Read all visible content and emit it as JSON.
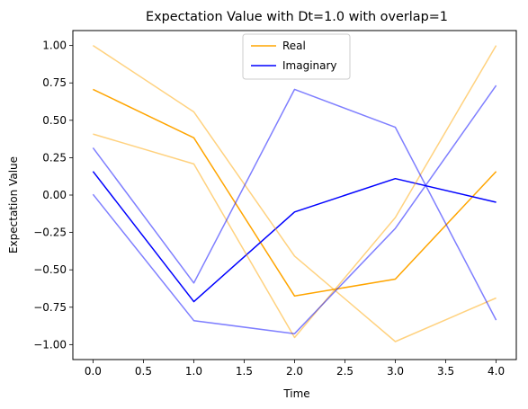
{
  "chart_data": {
    "type": "line",
    "title": "Expectation Value with Dt=1.0 with overlap=1",
    "xlabel": "Time",
    "ylabel": "Expectation Value",
    "xlim": [
      -0.2,
      4.2
    ],
    "ylim": [
      -1.1,
      1.1
    ],
    "xticks": [
      0.0,
      0.5,
      1.0,
      1.5,
      2.0,
      2.5,
      3.0,
      3.5,
      4.0
    ],
    "xtick_labels": [
      "0.0",
      "0.5",
      "1.0",
      "1.5",
      "2.0",
      "2.5",
      "3.0",
      "3.5",
      "4.0"
    ],
    "yticks": [
      -1.0,
      -0.75,
      -0.5,
      -0.25,
      0.0,
      0.25,
      0.5,
      0.75,
      1.0
    ],
    "ytick_labels": [
      "−1.00",
      "−0.75",
      "−0.50",
      "−0.25",
      "0.00",
      "0.25",
      "0.50",
      "0.75",
      "1.00"
    ],
    "grid": false,
    "legend_position": "top-center",
    "x": [
      0,
      1,
      2,
      3,
      4
    ],
    "series": [
      {
        "name": "Real",
        "color": "#FFA500",
        "opacity": 1.0,
        "legend": true,
        "values": [
          0.707,
          0.383,
          -0.675,
          -0.562,
          0.158
        ]
      },
      {
        "name": "Imaginary",
        "color": "#0000FF",
        "opacity": 1.0,
        "legend": true,
        "values": [
          0.158,
          -0.713,
          -0.113,
          0.11,
          -0.048
        ]
      },
      {
        "color": "#FFA500",
        "opacity": 0.5,
        "legend": false,
        "values": [
          1.0,
          0.556,
          -0.408,
          -0.98,
          -0.688
        ]
      },
      {
        "color": "#FFA500",
        "opacity": 0.5,
        "legend": false,
        "values": [
          0.408,
          0.208,
          -0.953,
          -0.15,
          1.0
        ]
      },
      {
        "color": "#0000FF",
        "opacity": 0.5,
        "legend": false,
        "values": [
          0.316,
          -0.588,
          0.707,
          0.453,
          -0.836
        ]
      },
      {
        "color": "#0000FF",
        "opacity": 0.5,
        "legend": false,
        "values": [
          0.005,
          -0.84,
          -0.927,
          -0.223,
          0.733
        ]
      }
    ]
  }
}
